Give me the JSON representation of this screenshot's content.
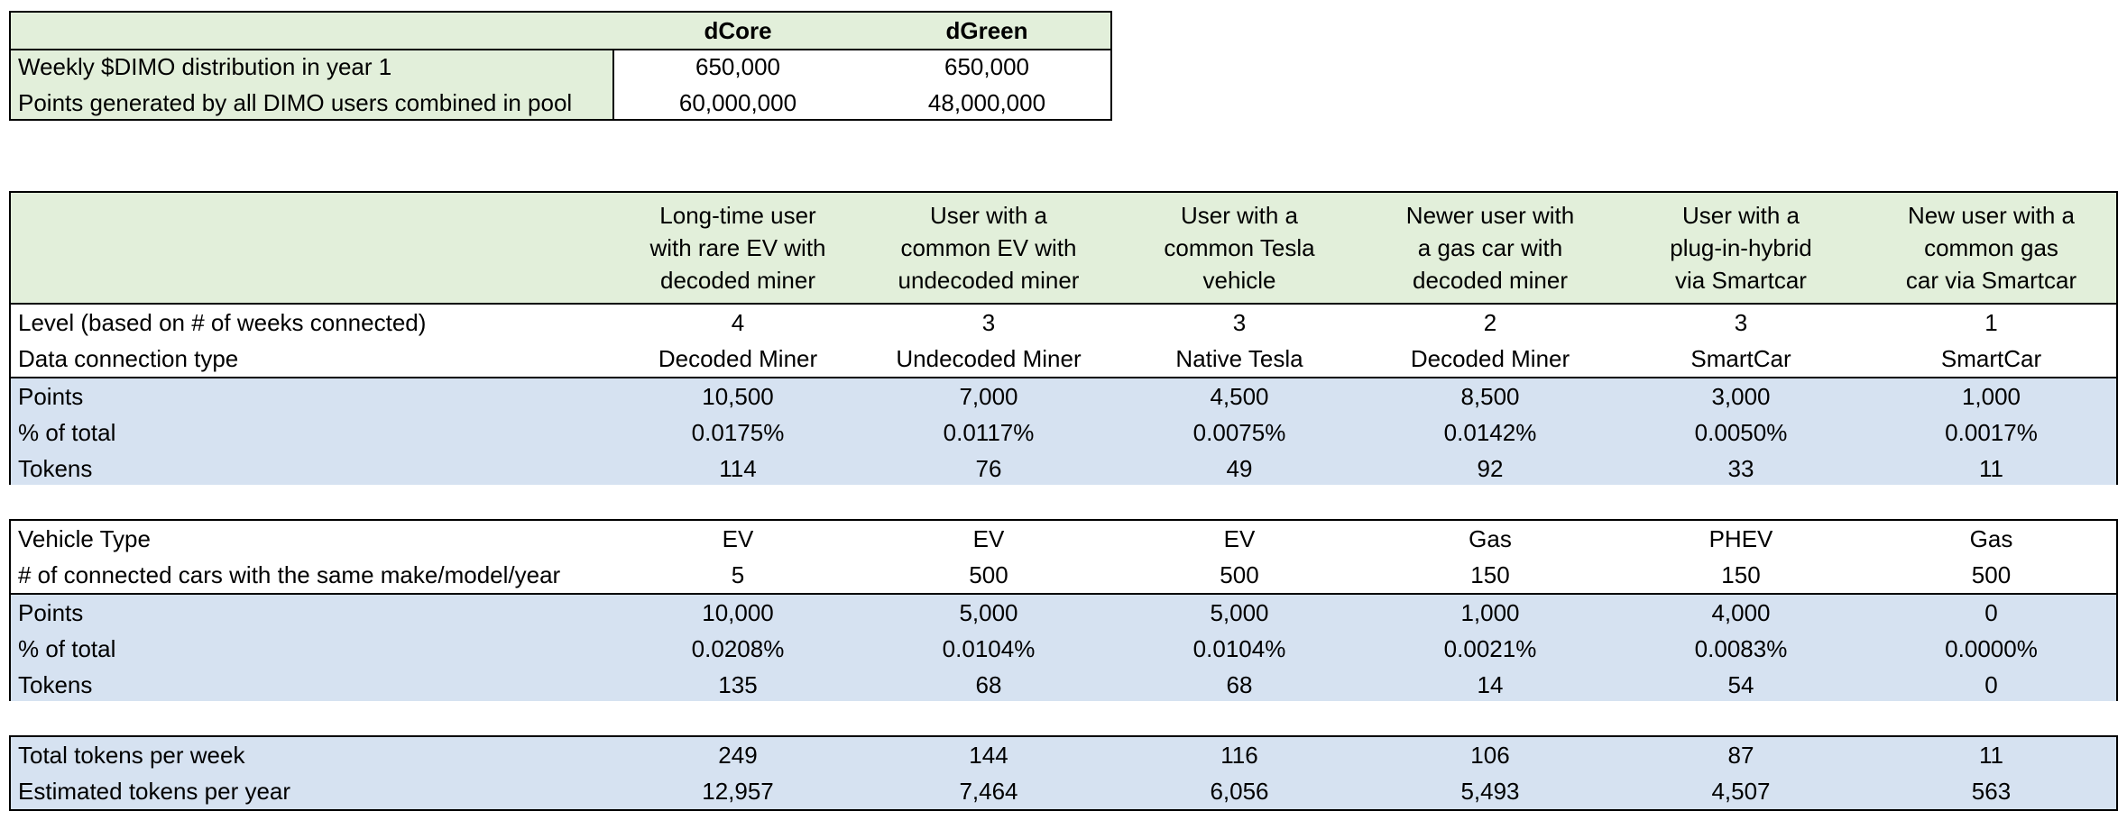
{
  "summary": {
    "headers": [
      "dCore",
      "dGreen"
    ],
    "rows": [
      {
        "label": "Weekly $DIMO distribution in year 1",
        "values": [
          "650,000",
          "650,000"
        ]
      },
      {
        "label": "Points generated by all DIMO users combined in pool",
        "values": [
          "60,000,000",
          "48,000,000"
        ]
      }
    ]
  },
  "user_types": [
    [
      "Long-time user",
      "with rare EV with",
      "decoded miner"
    ],
    [
      "User with a",
      "common EV with",
      "undecoded miner"
    ],
    [
      "User with a",
      "common Tesla",
      "vehicle"
    ],
    [
      "Newer user with",
      "a gas car with",
      "decoded miner"
    ],
    [
      "User with a",
      "plug-in-hybrid",
      "via Smartcar"
    ],
    [
      "New user with a",
      "common gas",
      "car via Smartcar"
    ]
  ],
  "core_rows": [
    {
      "label": "Level (based on # of weeks connected)",
      "values": [
        "4",
        "3",
        "3",
        "2",
        "3",
        "1"
      ]
    },
    {
      "label": "Data connection type",
      "values": [
        "Decoded Miner",
        "Undecoded Miner",
        "Native Tesla",
        "Decoded Miner",
        "SmartCar",
        "SmartCar"
      ]
    }
  ],
  "core_results": [
    {
      "label": "Points",
      "values": [
        "10,500",
        "7,000",
        "4,500",
        "8,500",
        "3,000",
        "1,000"
      ]
    },
    {
      "label": "% of total",
      "values": [
        "0.0175%",
        "0.0117%",
        "0.0075%",
        "0.0142%",
        "0.0050%",
        "0.0017%"
      ]
    },
    {
      "label": "Tokens",
      "values": [
        "114",
        "76",
        "49",
        "92",
        "33",
        "11"
      ]
    }
  ],
  "green_rows": [
    {
      "label": "Vehicle Type",
      "values": [
        "EV",
        "EV",
        "EV",
        "Gas",
        "PHEV",
        "Gas"
      ]
    },
    {
      "label": "# of connected cars with the same make/model/year",
      "values": [
        "5",
        "500",
        "500",
        "150",
        "150",
        "500"
      ]
    }
  ],
  "green_results": [
    {
      "label": "Points",
      "values": [
        "10,000",
        "5,000",
        "5,000",
        "1,000",
        "4,000",
        "0"
      ]
    },
    {
      "label": "% of total",
      "values": [
        "0.0208%",
        "0.0104%",
        "0.0104%",
        "0.0021%",
        "0.0083%",
        "0.0000%"
      ]
    },
    {
      "label": "Tokens",
      "values": [
        "135",
        "68",
        "68",
        "14",
        "54",
        "0"
      ]
    }
  ],
  "totals": [
    {
      "label": "Total tokens per week",
      "values": [
        "249",
        "144",
        "116",
        "106",
        "87",
        "11"
      ]
    },
    {
      "label": "Estimated tokens per year",
      "values": [
        "12,957",
        "7,464",
        "6,056",
        "5,493",
        "4,507",
        "563"
      ]
    }
  ]
}
